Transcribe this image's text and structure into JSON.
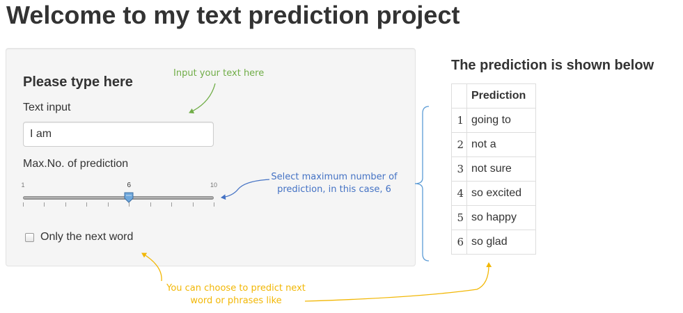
{
  "page": {
    "title": "Welcome to my text prediction project"
  },
  "input_panel": {
    "heading": "Please type here",
    "text_input": {
      "label": "Text input",
      "value": "I am"
    },
    "slider": {
      "label": "Max.No. of prediction",
      "min": 1,
      "max": 10,
      "value": 6,
      "min_label": "1",
      "max_label": "10",
      "value_label": "6"
    },
    "checkbox": {
      "label": "Only the next word",
      "checked": false
    }
  },
  "output_panel": {
    "title": "The prediction is shown below",
    "table": {
      "column_header": "Prediction",
      "rows": [
        {
          "index": "1",
          "value": "going to"
        },
        {
          "index": "2",
          "value": "not a"
        },
        {
          "index": "3",
          "value": "not sure"
        },
        {
          "index": "4",
          "value": "so excited"
        },
        {
          "index": "5",
          "value": "so happy"
        },
        {
          "index": "6",
          "value": "so glad"
        }
      ]
    }
  },
  "annotations": {
    "input_hint": "Input your text here",
    "slider_hint_line1": "Select maximum number of",
    "slider_hint_line2": "prediction, in this case, 6",
    "checkbox_hint_line1": "You can choose to predict next",
    "checkbox_hint_line2": "word or phrases like"
  },
  "colors": {
    "green_annotation": "#70ad47",
    "blue_annotation": "#4472c4",
    "yellow_annotation": "#f2b705",
    "bracket": "#5b9bd5",
    "slider_handle": "#6fa8dc"
  }
}
